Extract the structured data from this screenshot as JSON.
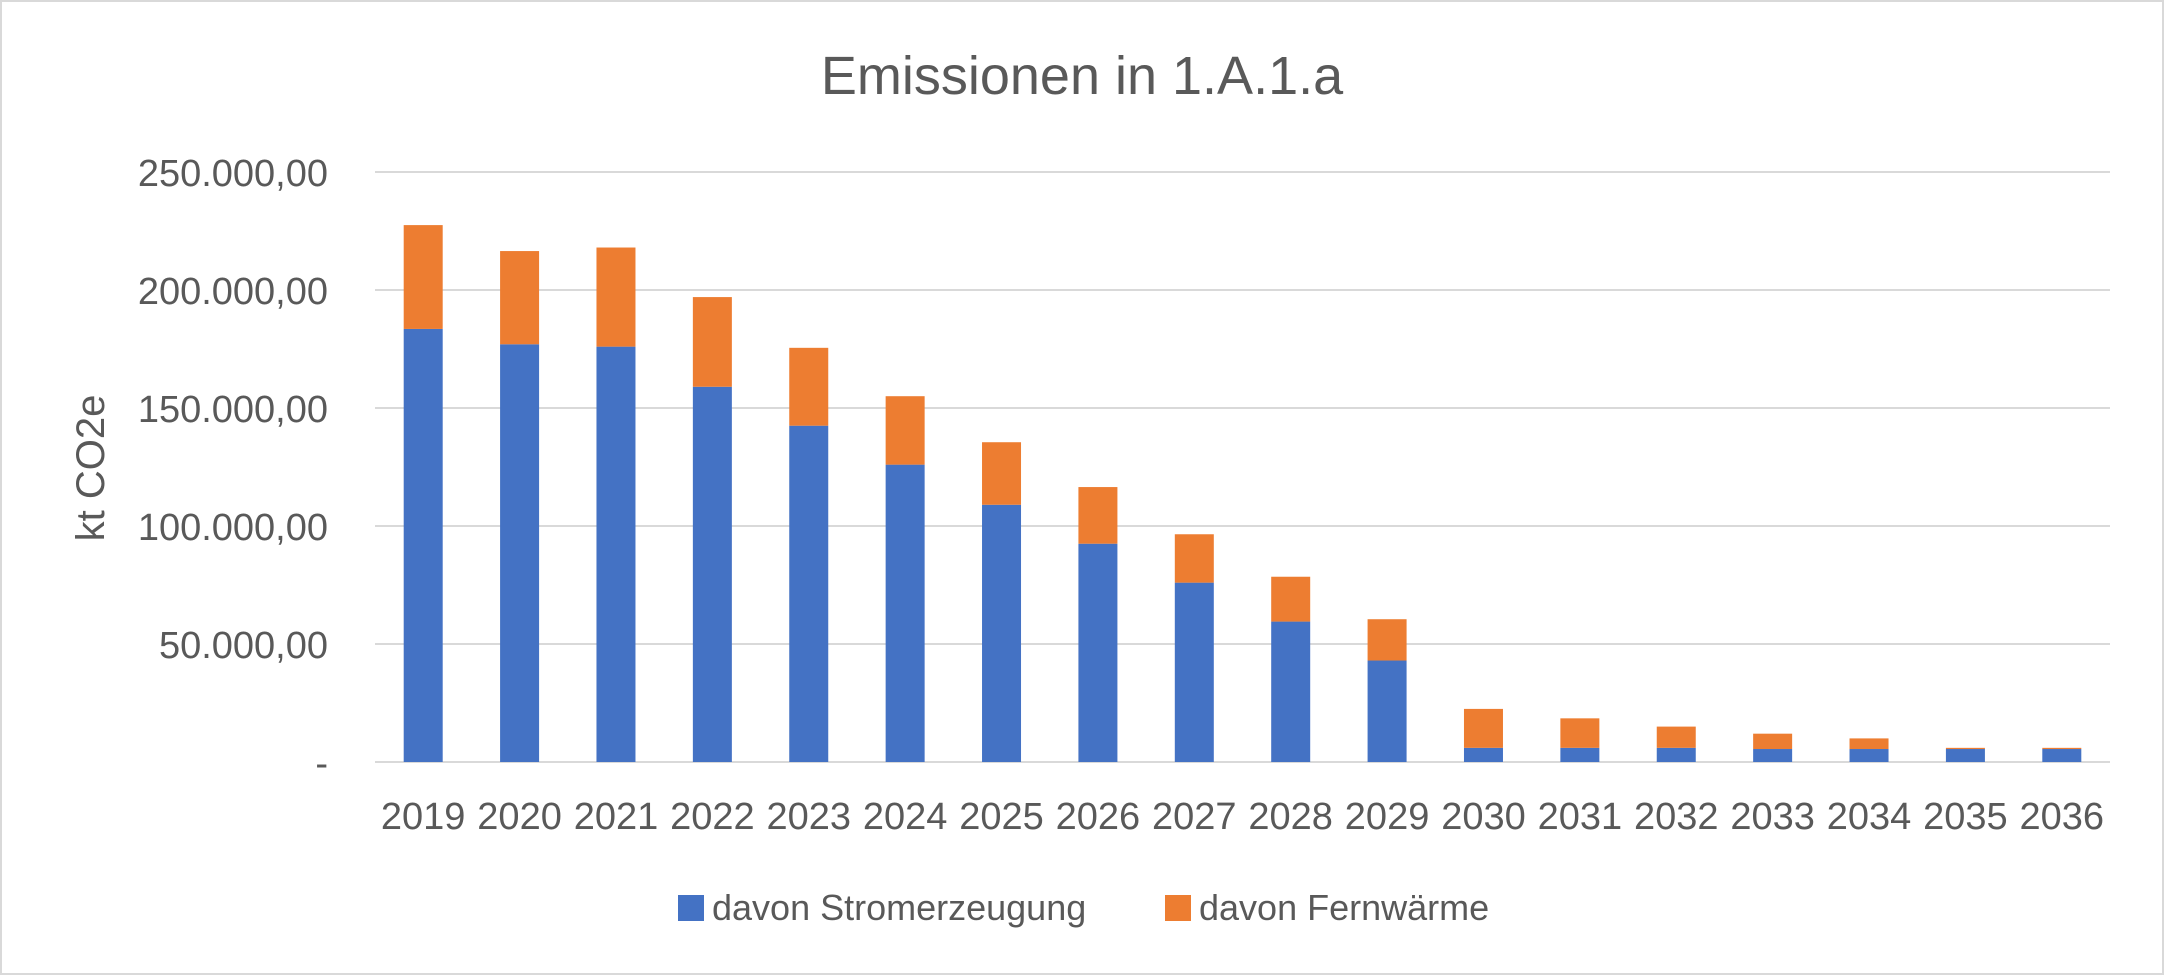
{
  "chart_data": {
    "type": "bar",
    "stacked": true,
    "title": "Emissionen in 1.A.1.a",
    "xlabel": "",
    "ylabel": "kt CO2e",
    "categories": [
      "2019",
      "2020",
      "2021",
      "2022",
      "2023",
      "2024",
      "2025",
      "2026",
      "2027",
      "2028",
      "2029",
      "2030",
      "2031",
      "2032",
      "2033",
      "2034",
      "2035",
      "2036"
    ],
    "series": [
      {
        "name": "davon Stromerzeugung",
        "color": "#4472C4",
        "values": [
          183500,
          177000,
          176000,
          159000,
          142500,
          126000,
          109000,
          92500,
          76000,
          59500,
          43000,
          6000,
          6000,
          6000,
          5500,
          5500,
          5500,
          5500
        ]
      },
      {
        "name": "davon Fernwärme",
        "color": "#ED7D31",
        "values": [
          44000,
          39500,
          42000,
          38000,
          33000,
          29000,
          26500,
          24000,
          20500,
          19000,
          17500,
          16500,
          12500,
          9000,
          6500,
          4500,
          500,
          500
        ]
      }
    ],
    "ylim": [
      0,
      250000
    ],
    "yticks": [
      0,
      50000,
      100000,
      150000,
      200000,
      250000
    ],
    "ytick_labels": [
      "-",
      "50.000,00",
      "100.000,00",
      "150.000,00",
      "200.000,00",
      "250.000,00"
    ],
    "grid": true,
    "legend_position": "bottom"
  }
}
